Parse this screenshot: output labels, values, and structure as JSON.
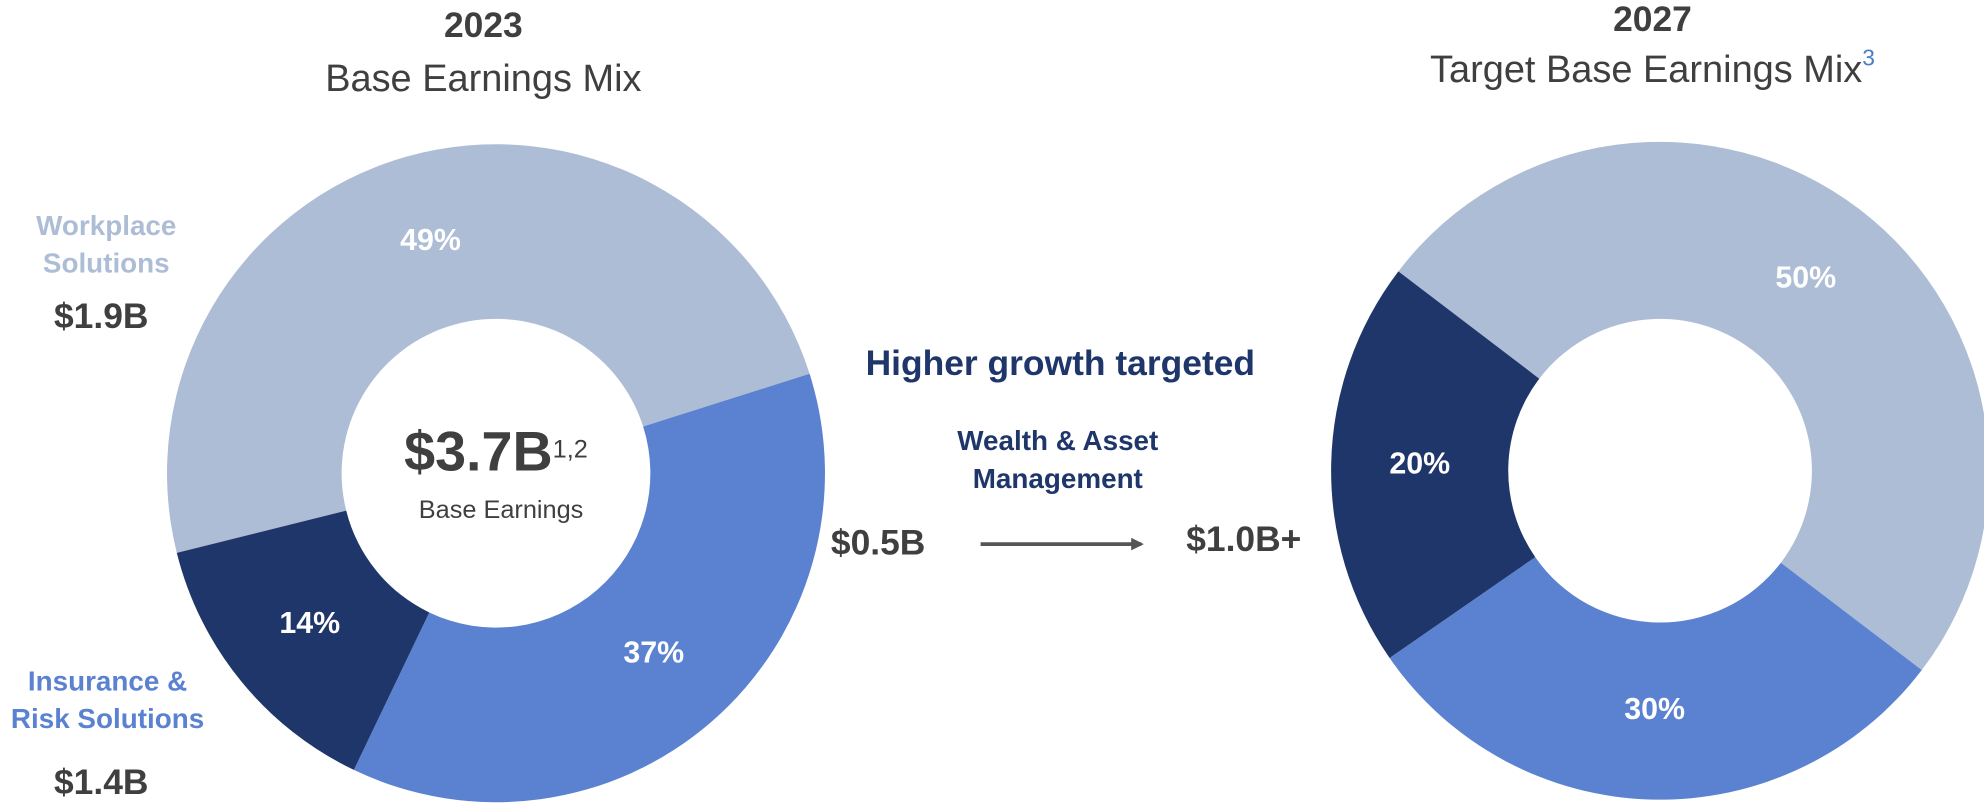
{
  "chart_data": [
    {
      "type": "pie",
      "title": "2023",
      "subtitle": "Base Earnings Mix",
      "categories": [
        "Workplace Solutions",
        "Insurance & Risk Solutions",
        "Wealth & Asset Management"
      ],
      "values": [
        49,
        37,
        14
      ],
      "value_labels": [
        "49%",
        "37%",
        "14%"
      ],
      "colors": [
        "#adbdd6",
        "#5b82d1",
        "#1f366b"
      ],
      "amounts": [
        "$1.9B",
        "$1.4B",
        "$0.5B"
      ],
      "center_value": "$3.7B",
      "center_note": "1,2",
      "center_label": "Base Earnings"
    },
    {
      "type": "pie",
      "title": "2027",
      "subtitle": "Target Base Earnings Mix",
      "subtitle_note": "3",
      "values": [
        50,
        30,
        20
      ],
      "value_labels": [
        "50%",
        "30%",
        "20%"
      ],
      "colors": [
        "#adbdd6",
        "#5b82d1",
        "#1f366b"
      ],
      "annotation": "$1.0B+"
    }
  ],
  "transition": "Higher growth targeted"
}
